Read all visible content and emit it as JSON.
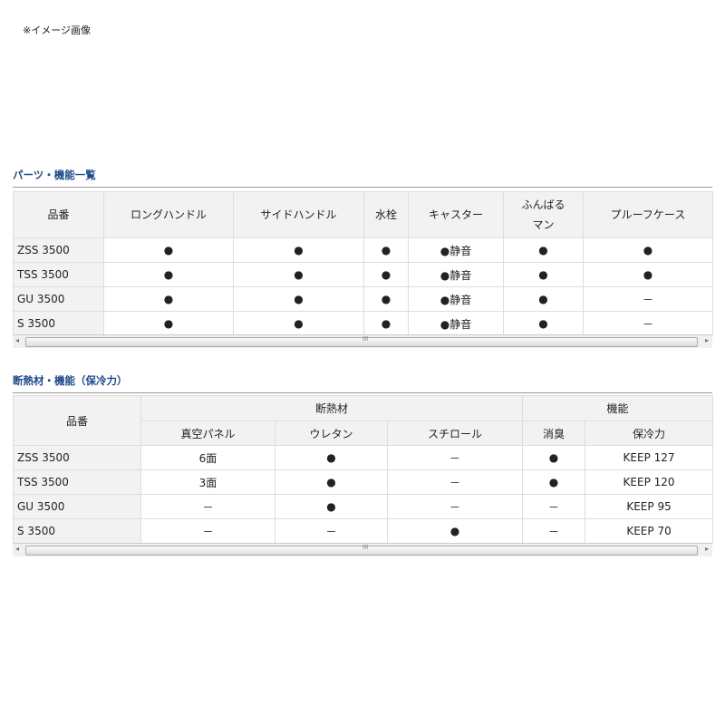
{
  "note": "※イメージ画像",
  "table1": {
    "title": "パーツ・機能一覧",
    "headers": [
      "品番",
      "ロングハンドル",
      "サイドハンドル",
      "水栓",
      "キャスター",
      "ふんばる\nマン",
      "プルーフケース"
    ],
    "rows": [
      [
        "ZSS 3500",
        "●",
        "●",
        "●",
        "●静音",
        "●",
        "●"
      ],
      [
        "TSS 3500",
        "●",
        "●",
        "●",
        "●静音",
        "●",
        "●"
      ],
      [
        "GU 3500",
        "●",
        "●",
        "●",
        "●静音",
        "●",
        "－"
      ],
      [
        "S 3500",
        "●",
        "●",
        "●",
        "●静音",
        "●",
        "－"
      ]
    ]
  },
  "table2": {
    "title": "断熱材・機能（保冷力）",
    "header_top": [
      "品番",
      "断熱材",
      "機能"
    ],
    "header_sub": [
      "真空パネル",
      "ウレタン",
      "スチロール",
      "消臭",
      "保冷力"
    ],
    "rows": [
      [
        "ZSS 3500",
        "6面",
        "●",
        "－",
        "●",
        "KEEP 127"
      ],
      [
        "TSS 3500",
        "3面",
        "●",
        "－",
        "●",
        "KEEP 120"
      ],
      [
        "GU 3500",
        "－",
        "●",
        "－",
        "－",
        "KEEP 95"
      ],
      [
        "S 3500",
        "－",
        "－",
        "●",
        "－",
        "KEEP 70"
      ]
    ]
  },
  "scrollbar": {
    "left_arrow": "◂",
    "right_arrow": "▸",
    "grip": "III"
  }
}
